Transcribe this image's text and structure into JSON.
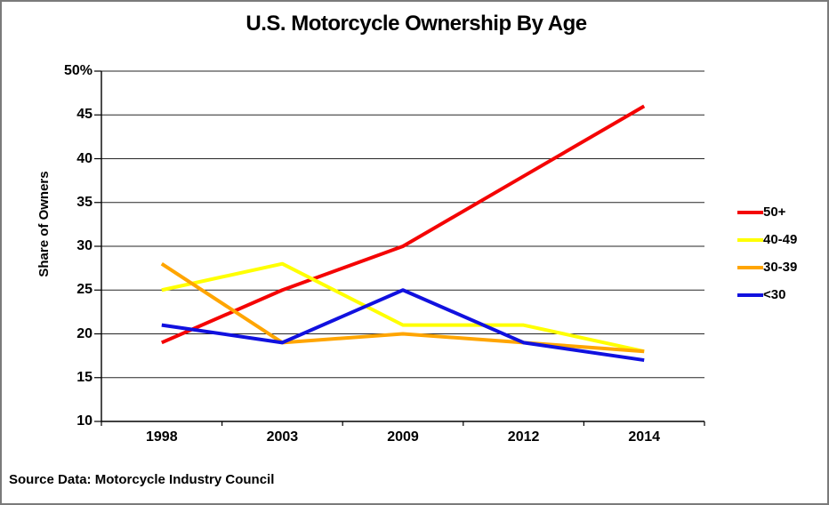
{
  "title": "U.S. Motorcycle Ownership By Age",
  "source_note": "Source Data: Motorcycle Industry Council",
  "colors": {
    "red": "#F40404",
    "yellow": "#FFFF00",
    "orange": "#FFA500",
    "blue": "#1111DF",
    "axis": "#000000",
    "gridline": "#262626",
    "border": "#7a7a7a",
    "background": "#ffffff",
    "text": "#000000"
  },
  "chart_data": {
    "type": "line",
    "title": "U.S. Motorcycle Ownership By Age",
    "xlabel": "",
    "ylabel": "Share of Owners",
    "categories": [
      "1998",
      "2003",
      "2009",
      "2012",
      "2014"
    ],
    "series": [
      {
        "name": "50+",
        "color": "#F40404",
        "values": [
          19,
          25,
          30,
          38,
          46
        ]
      },
      {
        "name": "40-49",
        "color": "#FFFF00",
        "values": [
          25,
          28,
          21,
          21,
          18
        ]
      },
      {
        "name": "30-39",
        "color": "#FFA500",
        "values": [
          28,
          19,
          20,
          19,
          18
        ]
      },
      {
        "name": "<30",
        "color": "#1111DF",
        "values": [
          21,
          19,
          25,
          19,
          17
        ]
      }
    ],
    "ylim": [
      10,
      50
    ],
    "y_ticks": {
      "values": [
        50,
        45,
        40,
        35,
        30,
        25,
        20,
        15,
        10
      ],
      "labels": [
        "50%",
        "45",
        "40",
        "35",
        "30",
        "25",
        "20",
        "15",
        "10"
      ]
    },
    "grid": true,
    "legend_position": "right"
  }
}
